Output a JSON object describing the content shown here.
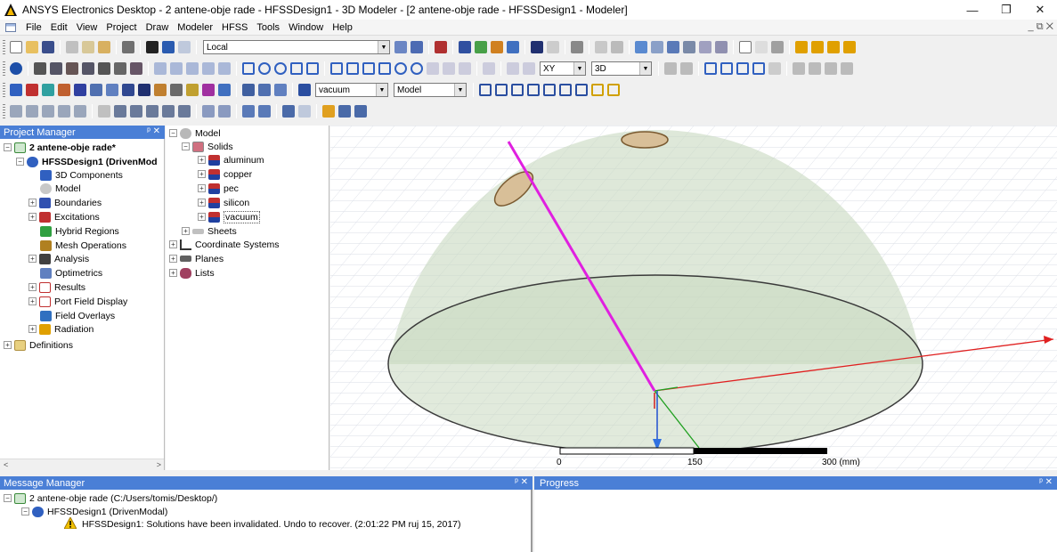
{
  "window": {
    "title": "ANSYS Electronics Desktop - 2 antene-obje rade - HFSSDesign1 - 3D Modeler - [2 antene-obje rade - HFSSDesign1 - Modeler]",
    "minimize": "—",
    "restore": "❐",
    "close": "✕"
  },
  "menu": {
    "items": [
      "File",
      "Edit",
      "View",
      "Project",
      "Draw",
      "Modeler",
      "HFSS",
      "Tools",
      "Window",
      "Help"
    ],
    "mdi_restore": "_ ⧉ ✕"
  },
  "toolbar": {
    "coord_system_select": "Local",
    "plane_select": "XY",
    "dimension_select": "3D",
    "material_select": "vacuum",
    "model_select": "Model"
  },
  "project_manager": {
    "title": "Project Manager",
    "header_buttons": "ᵖ ✕",
    "project_name": "2 antene-obje rade*",
    "design_name": "HFSSDesign1 (DrivenMod",
    "items": [
      "3D Components",
      "Model",
      "Boundaries",
      "Excitations",
      "Hybrid Regions",
      "Mesh Operations",
      "Analysis",
      "Optimetrics",
      "Results",
      "Port Field Display",
      "Field Overlays",
      "Radiation",
      "Definitions"
    ]
  },
  "model_tree": {
    "root": "Model",
    "solids": "Solids",
    "materials": [
      "aluminum",
      "copper",
      "pec",
      "silicon",
      "vacuum"
    ],
    "sheets": "Sheets",
    "coordinate_systems": "Coordinate Systems",
    "planes": "Planes",
    "lists": "Lists"
  },
  "viewport": {
    "scale_labels": [
      "0",
      "150",
      "300 (mm)"
    ]
  },
  "message_manager": {
    "title": "Message Manager",
    "header_buttons": "ᵖ ✕",
    "project_line": "2 antene-obje rade (C:/Users/tomis/Desktop/)",
    "design_line": "HFSSDesign1 (DrivenModal)",
    "warning": "HFSSDesign1: Solutions have been invalidated. Undo to recover. (2:01:22 PM  ruj 15, 2017)"
  },
  "progress": {
    "title": "Progress",
    "header_buttons": "ᵖ ✕"
  },
  "colors": {
    "panel_header": "#4a7fd6",
    "antenna_feed": "#e020e0",
    "dome_fill": "#c8d8c0"
  }
}
